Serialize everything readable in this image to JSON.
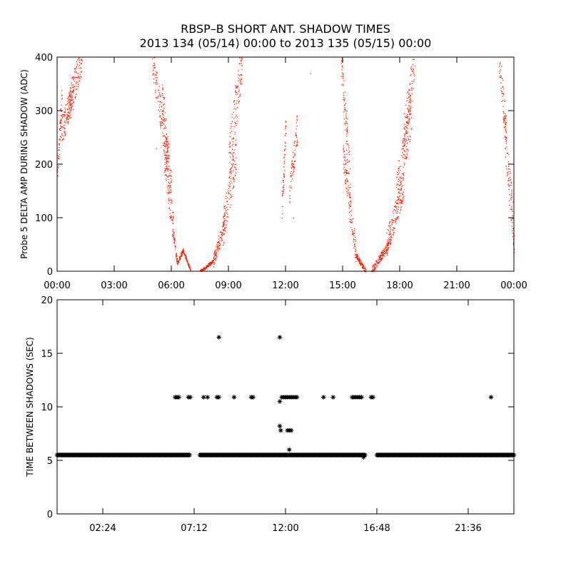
{
  "title_line1": "RBSP–B SHORT ANT. SHADOW TIMES",
  "title_line2": "2013 134 (05/14) 00:00 to 2013 135 (05/15) 00:00",
  "colors": {
    "upper_points": "#ff2000",
    "lower_points": "#000000",
    "axes": "#000000"
  },
  "chart_data": [
    {
      "type": "scatter",
      "ylabel": "Probe 5 DELTA AMP DURING SHADOW (ADC)",
      "xlabel": "",
      "x_unit": "hours",
      "xlim": [
        0,
        24
      ],
      "ylim": [
        0,
        400
      ],
      "x_tick_labels": [
        {
          "x": 0,
          "label": "00:00"
        },
        {
          "x": 3,
          "label": "03:00"
        },
        {
          "x": 6,
          "label": "06:00"
        },
        {
          "x": 9,
          "label": "09:00"
        },
        {
          "x": 12,
          "label": "12:00"
        },
        {
          "x": 15,
          "label": "15:00"
        },
        {
          "x": 18,
          "label": "18:00"
        },
        {
          "x": 21,
          "label": "21:00"
        },
        {
          "x": 24,
          "label": "00:00"
        }
      ],
      "y_ticks": [
        0,
        100,
        200,
        300,
        400
      ],
      "grid": false,
      "marker": "dot",
      "point_color": "#ff2000",
      "segments": [
        {
          "x_start": 0.0,
          "x_end": 0.25,
          "y_start": 180,
          "y_end": 330,
          "spread": 55
        },
        {
          "x_start": 0.2,
          "x_end": 0.85,
          "y_start": 260,
          "y_end": 330,
          "spread": 55
        },
        {
          "x_start": 0.5,
          "x_end": 1.3,
          "y_start": 300,
          "y_end": 400,
          "spread": 60
        },
        {
          "x_start": 5.0,
          "x_end": 5.8,
          "y_start": 400,
          "y_end": 210,
          "spread": 70
        },
        {
          "x_start": 5.5,
          "x_end": 6.0,
          "y_start": 330,
          "y_end": 150,
          "spread": 70
        },
        {
          "x_start": 5.6,
          "x_end": 6.1,
          "y_start": 220,
          "y_end": 80,
          "spread": 60
        },
        {
          "x_start": 6.1,
          "x_end": 6.3,
          "y_start": 70,
          "y_end": 15,
          "spread": 15
        },
        {
          "x_start": 6.3,
          "x_end": 6.6,
          "y_start": 15,
          "y_end": 40,
          "spread": 8
        },
        {
          "x_start": 6.6,
          "x_end": 7.0,
          "y_start": 40,
          "y_end": 2,
          "spread": 6
        },
        {
          "x_start": 7.5,
          "x_end": 8.2,
          "y_start": 0,
          "y_end": 20,
          "spread": 6
        },
        {
          "x_start": 8.2,
          "x_end": 8.8,
          "y_start": 20,
          "y_end": 90,
          "spread": 30
        },
        {
          "x_start": 8.7,
          "x_end": 9.4,
          "y_start": 80,
          "y_end": 220,
          "spread": 70
        },
        {
          "x_start": 9.0,
          "x_end": 9.7,
          "y_start": 200,
          "y_end": 400,
          "spread": 90
        },
        {
          "x_start": 11.8,
          "x_end": 12.0,
          "y_start": 120,
          "y_end": 260,
          "spread": 60
        },
        {
          "x_start": 12.2,
          "x_end": 12.6,
          "y_start": 140,
          "y_end": 270,
          "spread": 60
        },
        {
          "x_start": 14.9,
          "x_end": 15.4,
          "y_start": 400,
          "y_end": 160,
          "spread": 80
        },
        {
          "x_start": 15.0,
          "x_end": 15.7,
          "y_start": 220,
          "y_end": 30,
          "spread": 50
        },
        {
          "x_start": 15.7,
          "x_end": 16.2,
          "y_start": 30,
          "y_end": 0,
          "spread": 10
        },
        {
          "x_start": 16.5,
          "x_end": 17.4,
          "y_start": 0,
          "y_end": 50,
          "spread": 15
        },
        {
          "x_start": 17.3,
          "x_end": 18.2,
          "y_start": 50,
          "y_end": 160,
          "spread": 50
        },
        {
          "x_start": 17.8,
          "x_end": 18.6,
          "y_start": 140,
          "y_end": 300,
          "spread": 80
        },
        {
          "x_start": 18.2,
          "x_end": 18.8,
          "y_start": 250,
          "y_end": 400,
          "spread": 80
        },
        {
          "x_start": 23.2,
          "x_end": 23.6,
          "y_start": 400,
          "y_end": 250,
          "spread": 70
        },
        {
          "x_start": 23.5,
          "x_end": 24.0,
          "y_start": 260,
          "y_end": 70,
          "spread": 80
        }
      ],
      "isolated_points": [
        {
          "x": 13.3,
          "y": 370
        },
        {
          "x": 5.2,
          "y": 230
        },
        {
          "x": 11.8,
          "y": 100
        },
        {
          "x": 12.4,
          "y": 100
        }
      ]
    },
    {
      "type": "scatter",
      "ylabel": "TIME BETWEEN SHADOWS (SEC)",
      "xlabel": "",
      "x_unit": "hours",
      "xlim": [
        0,
        24
      ],
      "ylim": [
        0,
        20
      ],
      "x_tick_labels": [
        {
          "x": 2.4,
          "label": "02:24"
        },
        {
          "x": 7.2,
          "label": "07:12"
        },
        {
          "x": 12.0,
          "label": "12:00"
        },
        {
          "x": 16.8,
          "label": "16:48"
        },
        {
          "x": 21.6,
          "label": "21:36"
        }
      ],
      "y_ticks": [
        0,
        5,
        10,
        15,
        20
      ],
      "grid": false,
      "marker": "asterisk",
      "point_color": "#000000",
      "baseline": {
        "y": 5.5,
        "ranges": [
          [
            0.0,
            7.0
          ],
          [
            7.5,
            16.2
          ],
          [
            16.8,
            24.0
          ]
        ]
      },
      "points": [
        {
          "x": 6.2,
          "y": 10.9
        },
        {
          "x": 6.3,
          "y": 10.9
        },
        {
          "x": 6.4,
          "y": 10.9
        },
        {
          "x": 6.9,
          "y": 10.9
        },
        {
          "x": 7.0,
          "y": 10.9
        },
        {
          "x": 7.7,
          "y": 10.9
        },
        {
          "x": 7.9,
          "y": 10.9
        },
        {
          "x": 8.4,
          "y": 10.9
        },
        {
          "x": 8.5,
          "y": 10.9
        },
        {
          "x": 9.3,
          "y": 10.9
        },
        {
          "x": 10.2,
          "y": 10.9
        },
        {
          "x": 10.3,
          "y": 10.9
        },
        {
          "x": 8.5,
          "y": 16.5
        },
        {
          "x": 11.7,
          "y": 16.5
        },
        {
          "x": 11.7,
          "y": 10.5
        },
        {
          "x": 11.8,
          "y": 10.9
        },
        {
          "x": 11.9,
          "y": 10.9
        },
        {
          "x": 12.0,
          "y": 10.9
        },
        {
          "x": 12.1,
          "y": 10.9
        },
        {
          "x": 12.2,
          "y": 10.9
        },
        {
          "x": 12.3,
          "y": 10.9
        },
        {
          "x": 12.4,
          "y": 10.9
        },
        {
          "x": 12.5,
          "y": 10.9
        },
        {
          "x": 12.6,
          "y": 10.9
        },
        {
          "x": 11.7,
          "y": 8.2
        },
        {
          "x": 11.75,
          "y": 7.8
        },
        {
          "x": 12.1,
          "y": 7.8
        },
        {
          "x": 12.2,
          "y": 7.8
        },
        {
          "x": 12.3,
          "y": 7.8
        },
        {
          "x": 12.2,
          "y": 6.0
        },
        {
          "x": 14.0,
          "y": 10.9
        },
        {
          "x": 14.5,
          "y": 10.9
        },
        {
          "x": 15.5,
          "y": 10.9
        },
        {
          "x": 15.6,
          "y": 10.9
        },
        {
          "x": 15.7,
          "y": 10.9
        },
        {
          "x": 15.8,
          "y": 10.9
        },
        {
          "x": 15.9,
          "y": 10.9
        },
        {
          "x": 16.0,
          "y": 10.9
        },
        {
          "x": 16.5,
          "y": 10.9
        },
        {
          "x": 16.6,
          "y": 10.9
        },
        {
          "x": 16.1,
          "y": 5.3
        },
        {
          "x": 22.8,
          "y": 10.9
        }
      ]
    }
  ]
}
